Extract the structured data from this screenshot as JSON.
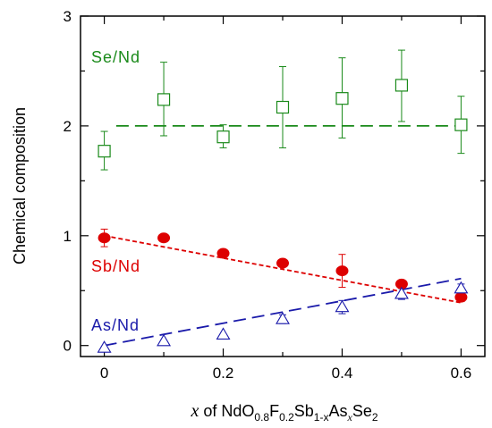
{
  "chart_data": {
    "type": "scatter",
    "ylabel": "Chemical composition",
    "xlabel_parts": {
      "var": "x",
      "of": " of NdO",
      "sub1": "0.8",
      "f": "F",
      "sub2": "0.2",
      "sb": "Sb",
      "sub3": "1-x",
      "as": "As",
      "sub4": "x",
      "se": "Se",
      "sub5": "2"
    },
    "xlim": [
      -0.04,
      0.64
    ],
    "ylim": [
      -0.1,
      3.0
    ],
    "xticks": [
      "0",
      "0.2",
      "0.4",
      "0.6"
    ],
    "xtick_values": [
      0,
      0.2,
      0.4,
      0.6
    ],
    "yticks": [
      "0",
      "1",
      "2",
      "3"
    ],
    "ytick_values": [
      0,
      1,
      2,
      3
    ],
    "series": [
      {
        "name": "Se/Nd",
        "color": "#1a8a1a",
        "marker": "open-square",
        "x": [
          0,
          0.1,
          0.2,
          0.3,
          0.4,
          0.5,
          0.6
        ],
        "y": [
          1.77,
          2.24,
          1.9,
          2.17,
          2.25,
          2.37,
          2.01
        ],
        "err_low": [
          0.17,
          0.33,
          0.1,
          0.37,
          0.36,
          0.33,
          0.26
        ],
        "err_high": [
          0.18,
          0.34,
          0.11,
          0.37,
          0.37,
          0.32,
          0.26
        ],
        "fit": {
          "x": [
            0.02,
            0.6
          ],
          "y": [
            2.0,
            2.0
          ],
          "style": "long-dash"
        }
      },
      {
        "name": "Sb/Nd",
        "color": "#dd0000",
        "marker": "filled-circle",
        "x": [
          0,
          0.1,
          0.2,
          0.3,
          0.4,
          0.5,
          0.6
        ],
        "y": [
          0.98,
          0.98,
          0.84,
          0.75,
          0.68,
          0.56,
          0.44
        ],
        "err_low": [
          0.08,
          0.02,
          0.03,
          0.02,
          0.15,
          0.02,
          0.04
        ],
        "err_high": [
          0.08,
          0.02,
          0.03,
          0.02,
          0.15,
          0.02,
          0.04
        ],
        "fit": {
          "x": [
            0.0,
            0.6
          ],
          "y": [
            1.0,
            0.39
          ],
          "style": "short-dash"
        }
      },
      {
        "name": "As/Nd",
        "color": "#1a1aaa",
        "marker": "open-triangle",
        "x": [
          0,
          0.1,
          0.2,
          0.3,
          0.4,
          0.5,
          0.6
        ],
        "y": [
          -0.02,
          0.04,
          0.1,
          0.24,
          0.35,
          0.47,
          0.52
        ],
        "err_low": [
          0.0,
          0.0,
          0.0,
          0.04,
          0.06,
          0.05,
          0.04
        ],
        "err_high": [
          0.0,
          0.0,
          0.0,
          0.04,
          0.06,
          0.05,
          0.04
        ],
        "fit": {
          "x": [
            0.0,
            0.6
          ],
          "y": [
            0.0,
            0.61
          ],
          "style": "long-dash"
        }
      }
    ],
    "legend": "inline-labels"
  }
}
